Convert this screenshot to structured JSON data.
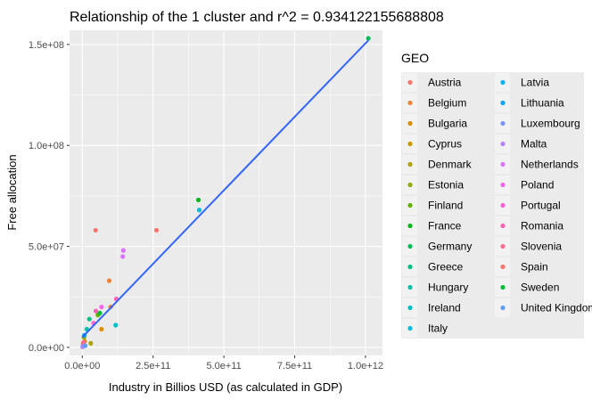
{
  "chart_data": {
    "type": "scatter",
    "title": "Relationship of the 1  cluster and r^2 =  0.934122155688808",
    "xlabel": "Industry in Billios USD (as calculated in GDP)",
    "ylabel": "Free allocation",
    "xlim": [
      -45000000000,
      1060000000000
    ],
    "ylim": [
      -4000000,
      157000000
    ],
    "x_ticks": [
      {
        "value": 0,
        "label": "0.0e+00"
      },
      {
        "value": 250000000000,
        "label": "2.5e+11"
      },
      {
        "value": 500000000000,
        "label": "5.0e+11"
      },
      {
        "value": 750000000000,
        "label": "7.5e+11"
      },
      {
        "value": 1000000000000,
        "label": "1.0e+12"
      }
    ],
    "y_ticks": [
      {
        "value": 0,
        "label": "0.0e+00"
      },
      {
        "value": 50000000,
        "label": "5.0e+07"
      },
      {
        "value": 100000000,
        "label": "1.0e+08"
      },
      {
        "value": 150000000,
        "label": "1.5e+08"
      }
    ],
    "grid": true,
    "legend": {
      "title": "GEO",
      "placement": "right",
      "entries": [
        {
          "name": "Austria",
          "color": "#F8766D"
        },
        {
          "name": "Belgium",
          "color": "#EC8239"
        },
        {
          "name": "Bulgaria",
          "color": "#DB8E00"
        },
        {
          "name": "Cyprus",
          "color": "#C79800"
        },
        {
          "name": "Denmark",
          "color": "#AEA200"
        },
        {
          "name": "Estonia",
          "color": "#8FAA00"
        },
        {
          "name": "Finland",
          "color": "#64B200"
        },
        {
          "name": "France",
          "color": "#00B81B"
        },
        {
          "name": "Germany",
          "color": "#00BD5C"
        },
        {
          "name": "Greece",
          "color": "#00C085"
        },
        {
          "name": "Hungary",
          "color": "#00C1A7"
        },
        {
          "name": "Ireland",
          "color": "#00BFC4"
        },
        {
          "name": "Italy",
          "color": "#00BADE"
        },
        {
          "name": "Latvia",
          "color": "#00B2F3"
        },
        {
          "name": "Lithuania",
          "color": "#00A6FF"
        },
        {
          "name": "Luxembourg",
          "color": "#7C96FF"
        },
        {
          "name": "Malta",
          "color": "#B385FF"
        },
        {
          "name": "Netherlands",
          "color": "#D874FD"
        },
        {
          "name": "Poland",
          "color": "#EF67EB"
        },
        {
          "name": "Portugal",
          "color": "#FD61D3"
        },
        {
          "name": "Romania",
          "color": "#FF63B6"
        },
        {
          "name": "Slovenia",
          "color": "#FF6B94"
        },
        {
          "name": "Spain",
          "color": "#F8766D"
        },
        {
          "name": "Sweden",
          "color": "#00BA38"
        },
        {
          "name": "United Kingdom",
          "color": "#619CFF"
        }
      ]
    },
    "series": [
      {
        "name": "Austria",
        "points": [
          [
            47000000000,
            58000000
          ]
        ]
      },
      {
        "name": "Belgium",
        "points": [
          [
            95000000000,
            33000000
          ]
        ]
      },
      {
        "name": "Bulgaria",
        "points": [
          [
            8000000000,
            3000000
          ],
          [
            68000000000,
            9000000
          ]
        ]
      },
      {
        "name": "Cyprus",
        "points": [
          [
            3000000000,
            2000000
          ]
        ]
      },
      {
        "name": "Denmark",
        "points": [
          [
            30000000000,
            2000000
          ]
        ]
      },
      {
        "name": "Estonia",
        "points": [
          [
            6000000000,
            5000000
          ]
        ]
      },
      {
        "name": "Finland",
        "points": [
          [
            55000000000,
            16000000
          ]
        ]
      },
      {
        "name": "France",
        "points": [
          [
            410000000000,
            73000000
          ]
        ]
      },
      {
        "name": "Germany",
        "points": [
          [
            1010000000000,
            153000000
          ]
        ]
      },
      {
        "name": "Greece",
        "points": [
          [
            25000000000,
            14000000
          ]
        ]
      },
      {
        "name": "Hungary",
        "points": [
          [
            16000000000,
            9000000
          ]
        ]
      },
      {
        "name": "Ireland",
        "points": [
          [
            118000000000,
            11000000
          ]
        ]
      },
      {
        "name": "Italy",
        "points": [
          [
            413000000000,
            68000000
          ]
        ]
      },
      {
        "name": "Latvia",
        "points": [
          [
            4000000000,
            1000000
          ]
        ]
      },
      {
        "name": "Lithuania",
        "points": [
          [
            7000000000,
            6000000
          ]
        ]
      },
      {
        "name": "Luxembourg",
        "points": [
          [
            3000000000,
            1000000
          ]
        ]
      },
      {
        "name": "Malta",
        "points": [
          [
            1000000000,
            300000
          ]
        ]
      },
      {
        "name": "Netherlands",
        "points": [
          [
            145000000000,
            48000000
          ],
          [
            143000000000,
            45000000
          ]
        ]
      },
      {
        "name": "Poland",
        "points": [
          [
            68000000000,
            20000000
          ]
        ]
      },
      {
        "name": "Portugal",
        "points": [
          [
            40000000000,
            12000000
          ]
        ]
      },
      {
        "name": "Romania",
        "points": [
          [
            48000000000,
            18000000
          ]
        ]
      },
      {
        "name": "Slovenia",
        "points": [
          [
            5000000000,
            2500000
          ]
        ]
      },
      {
        "name": "Spain",
        "points": [
          [
            262000000000,
            58000000
          ]
        ]
      },
      {
        "name": "Sweden",
        "points": [
          [
            62000000000,
            17000000
          ]
        ]
      },
      {
        "name": "United Kingdom",
        "points": [
          [
            10000000000,
            800000
          ]
        ]
      }
    ],
    "extra_points": [
      {
        "color": "#FF63B6",
        "x": 120000000000,
        "y": 24000000
      },
      {
        "color": "#EC8239",
        "x": 100000000000,
        "y": 20000000
      }
    ],
    "fit_line": {
      "color": "#3366FF",
      "x": [
        0,
        1010000000000
      ],
      "y": [
        5000000,
        152000000
      ]
    }
  }
}
